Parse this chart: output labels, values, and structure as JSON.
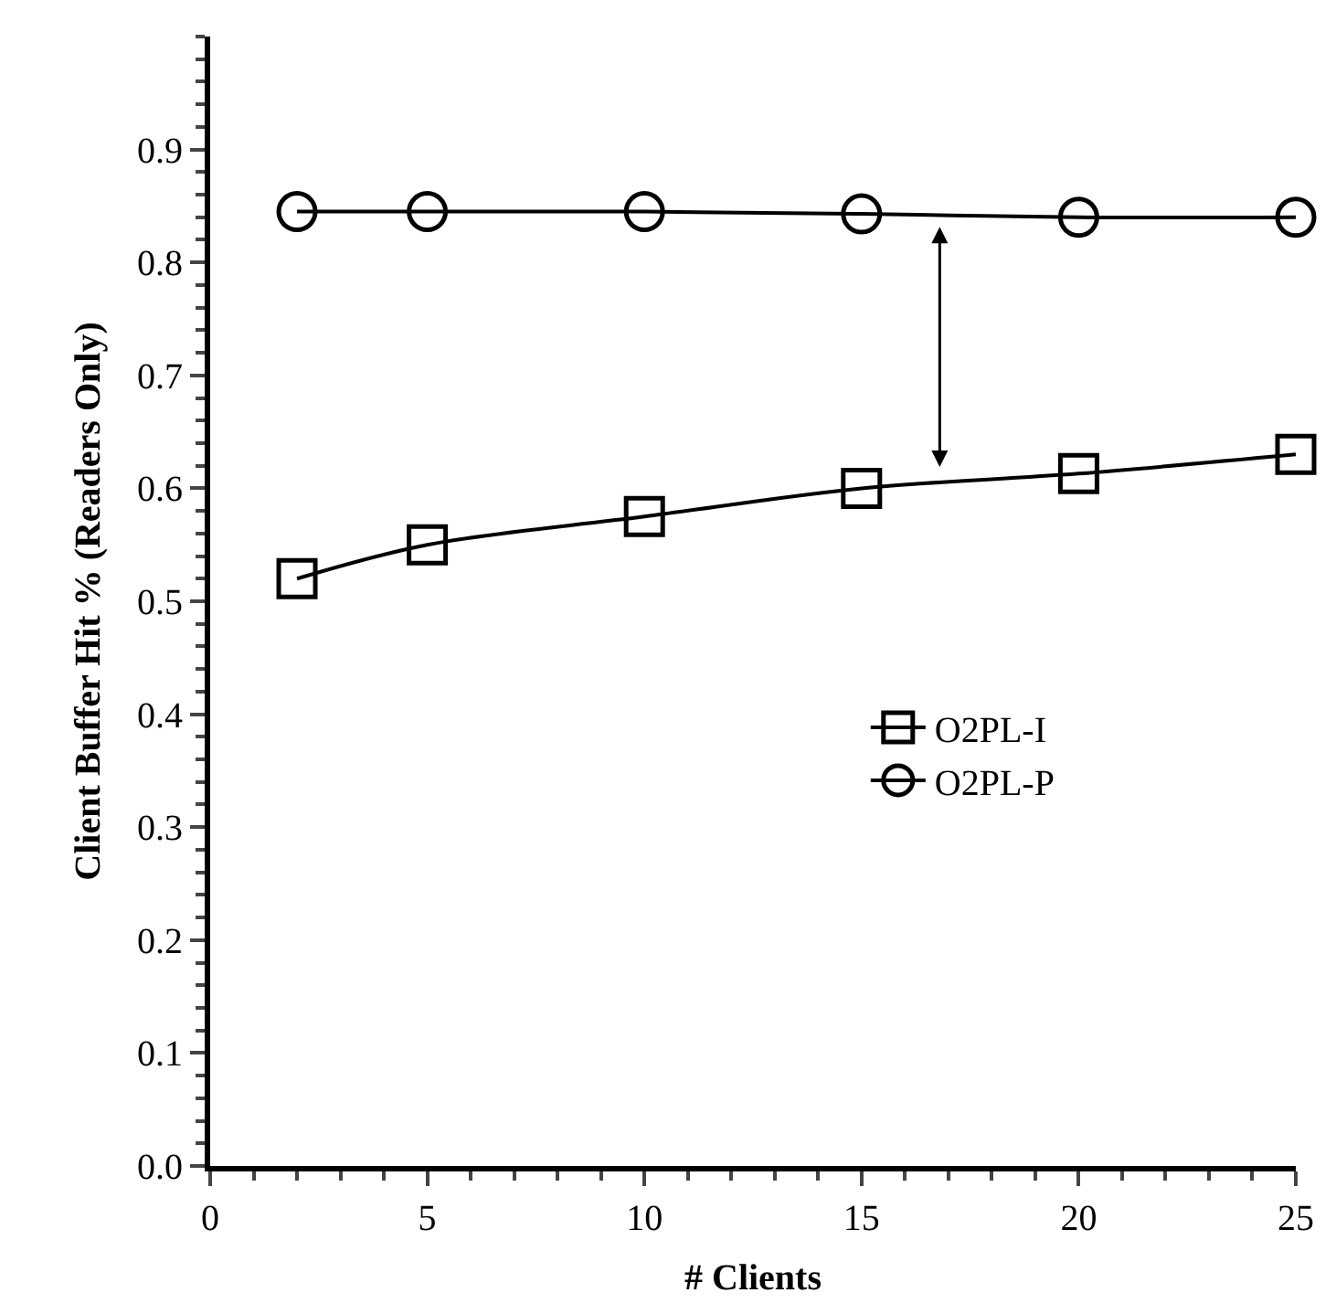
{
  "chart_data": {
    "type": "line",
    "xlabel": "# Clients",
    "ylabel": "Client Buffer Hit % (Readers Only)",
    "x": [
      2,
      5,
      10,
      15,
      20,
      25
    ],
    "series": [
      {
        "name": "O2PL-I",
        "color": "#000000",
        "marker": "square",
        "values": [
          0.52,
          0.55,
          0.575,
          0.6,
          0.613,
          0.63
        ]
      },
      {
        "name": "O2PL-P",
        "color": "#000000",
        "marker": "circle",
        "values": [
          0.845,
          0.845,
          0.845,
          0.843,
          0.84,
          0.84
        ]
      }
    ],
    "xlim": [
      0,
      25
    ],
    "xticks": [
      0,
      5,
      10,
      15,
      20,
      25
    ],
    "ylim": [
      0,
      1.0
    ],
    "yticks": [
      {
        "value": 0,
        "label": "0.0"
      },
      0.1,
      0.2,
      0.3,
      0.4,
      0.5,
      0.6,
      0.7,
      0.8,
      0.9
    ],
    "legend": "right",
    "line_style": "solid"
  }
}
